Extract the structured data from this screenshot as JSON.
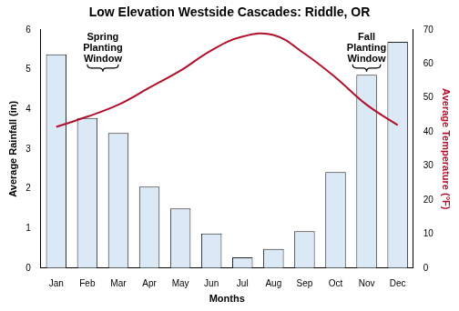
{
  "chart_data": {
    "type": "bar",
    "title": "Low Elevation Westside Cascades: Riddle, OR",
    "x_label": "Months",
    "y_label": "Average Rainfall (in)",
    "y2_label": "Average Temperature (°F)",
    "categories": [
      "Jan",
      "Feb",
      "Mar",
      "Apr",
      "May",
      "Jun",
      "Jul",
      "Aug",
      "Sep",
      "Oct",
      "Nov",
      "Dec"
    ],
    "series": [
      {
        "name": "Average Rainfall (in)",
        "type": "bar",
        "color": "#dbe9f7",
        "values": [
          5.38,
          3.78,
          3.4,
          2.05,
          1.5,
          0.87,
          0.27,
          0.48,
          0.93,
          2.42,
          4.87,
          5.7
        ]
      },
      {
        "name": "Average Temperature (°F)",
        "type": "line",
        "axis": "y2",
        "color": "#b0102a",
        "values": [
          41.5,
          44.5,
          48,
          53,
          58,
          64,
          68,
          68.5,
          63,
          56,
          48,
          42
        ]
      }
    ],
    "ylim": [
      0,
      6
    ],
    "yticks": [
      0,
      1,
      2,
      3,
      4,
      5,
      6
    ],
    "y2lim": [
      0,
      70
    ],
    "y2ticks": [
      0,
      10,
      20,
      30,
      40,
      50,
      60,
      70
    ],
    "grid": false,
    "annotations": [
      {
        "text": [
          "Spring",
          "Planting",
          "Window"
        ],
        "categories": [
          "Feb",
          "Mar"
        ]
      },
      {
        "text": [
          "Fall",
          "Planting",
          "Window"
        ],
        "categories": [
          "Nov"
        ]
      }
    ]
  }
}
